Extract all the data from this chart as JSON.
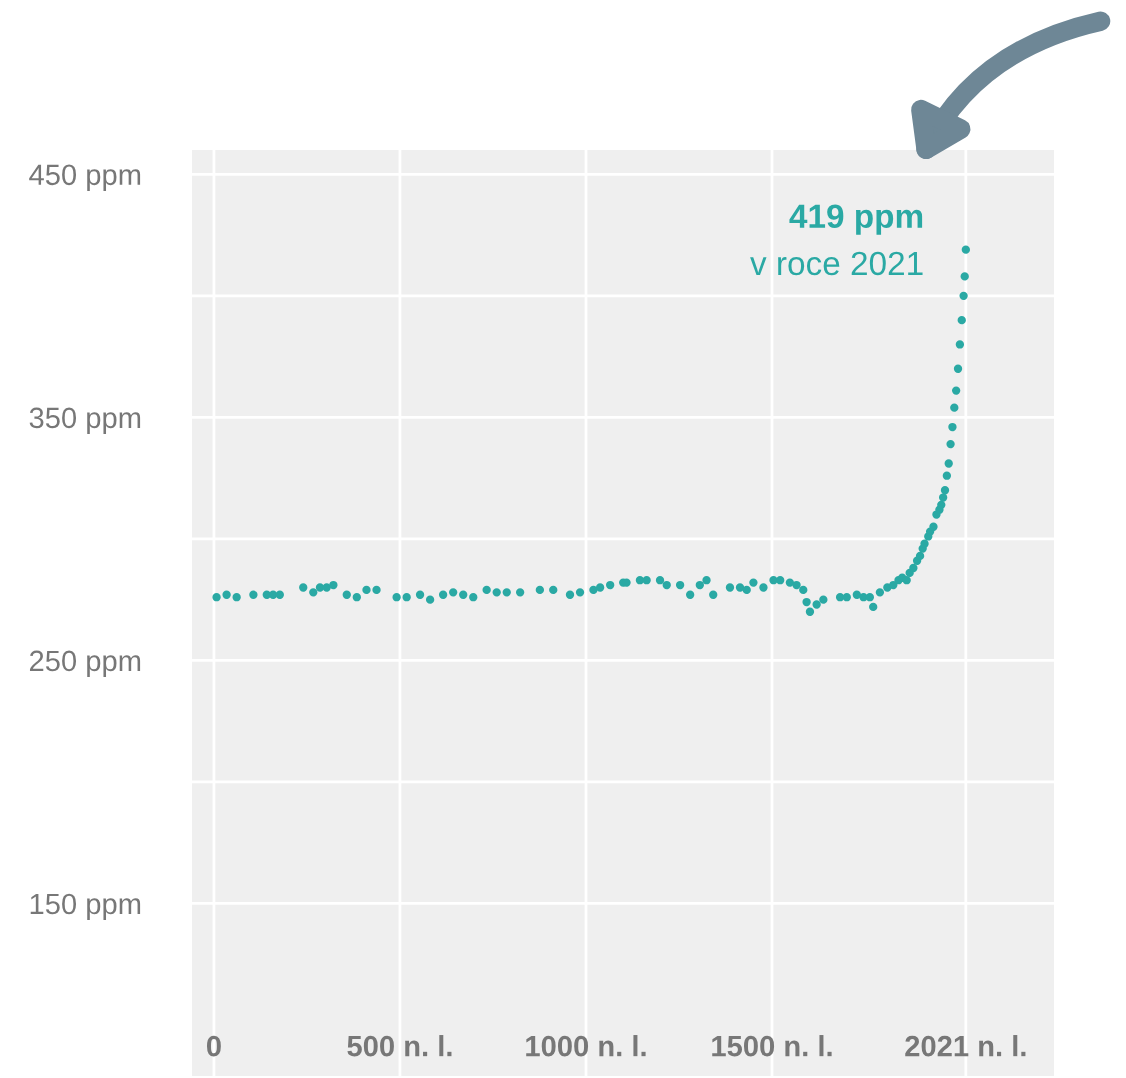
{
  "chart_data": {
    "type": "scatter",
    "x": [
      7,
      34,
      61,
      106,
      142,
      159,
      177,
      240,
      267,
      285,
      303,
      321,
      357,
      384,
      410,
      437,
      491,
      518,
      554,
      581,
      616,
      643,
      670,
      697,
      733,
      760,
      787,
      823,
      876,
      912,
      957,
      984,
      1020,
      1038,
      1065,
      1100,
      1109,
      1145,
      1163,
      1199,
      1217,
      1253,
      1280,
      1306,
      1324,
      1342,
      1387,
      1414,
      1432,
      1450,
      1477,
      1504,
      1522,
      1548,
      1566,
      1584,
      1593,
      1602,
      1620,
      1638,
      1683,
      1701,
      1728,
      1746,
      1763,
      1772,
      1790,
      1810,
      1826,
      1840,
      1850,
      1862,
      1870,
      1880,
      1890,
      1898,
      1905,
      1910,
      1920,
      1925,
      1934,
      1942,
      1950,
      1955,
      1960,
      1965,
      1970,
      1975,
      1980,
      1985,
      1990,
      1995,
      2000,
      2005,
      2010,
      2015,
      2018,
      2021
    ],
    "series": [
      {
        "color": "#2aa9a4",
        "values": [
          276,
          277,
          276,
          277,
          277,
          277,
          277,
          280,
          278,
          280,
          280,
          281,
          277,
          276,
          279,
          279,
          276,
          276,
          277,
          275,
          277,
          278,
          277,
          276,
          279,
          278,
          278,
          278,
          279,
          279,
          277,
          278,
          279,
          280,
          281,
          282,
          282,
          283,
          283,
          283,
          281,
          281,
          277,
          281,
          283,
          277,
          280,
          280,
          279,
          282,
          280,
          283,
          283,
          282,
          281,
          279,
          274,
          270,
          273,
          275,
          276,
          276,
          277,
          276,
          276,
          272,
          278,
          280,
          281,
          283,
          284,
          283,
          286,
          288,
          291,
          293,
          296,
          298,
          301,
          303,
          305,
          310,
          312,
          314,
          317,
          320,
          326,
          331,
          339,
          346,
          354,
          361,
          370,
          380,
          390,
          400,
          408,
          419
        ]
      }
    ],
    "xlim": [
      -59,
      2258
    ],
    "ylim": [
      79,
      460
    ],
    "xticks": [
      {
        "value": 0,
        "label": "0"
      },
      {
        "value": 500,
        "label": "500 n. l."
      },
      {
        "value": 1000,
        "label": "1000 n. l."
      },
      {
        "value": 1500,
        "label": "1500 n. l."
      },
      {
        "value": 2021,
        "label": "2021 n. l."
      }
    ],
    "yticks": [
      {
        "value": 150,
        "label": "150 ppm"
      },
      {
        "value": 200,
        "label": null
      },
      {
        "value": 250,
        "label": "250 ppm"
      },
      {
        "value": 300,
        "label": null
      },
      {
        "value": 350,
        "label": "350 ppm"
      },
      {
        "value": 400,
        "label": null
      },
      {
        "value": 450,
        "label": "450 ppm"
      }
    ],
    "grid": true,
    "marker": "circle",
    "annotations": [
      {
        "text": "419 ppm",
        "x": 2021,
        "y": 419
      },
      {
        "text": "v roce 2021",
        "x": 2021,
        "y": 419
      }
    ]
  }
}
